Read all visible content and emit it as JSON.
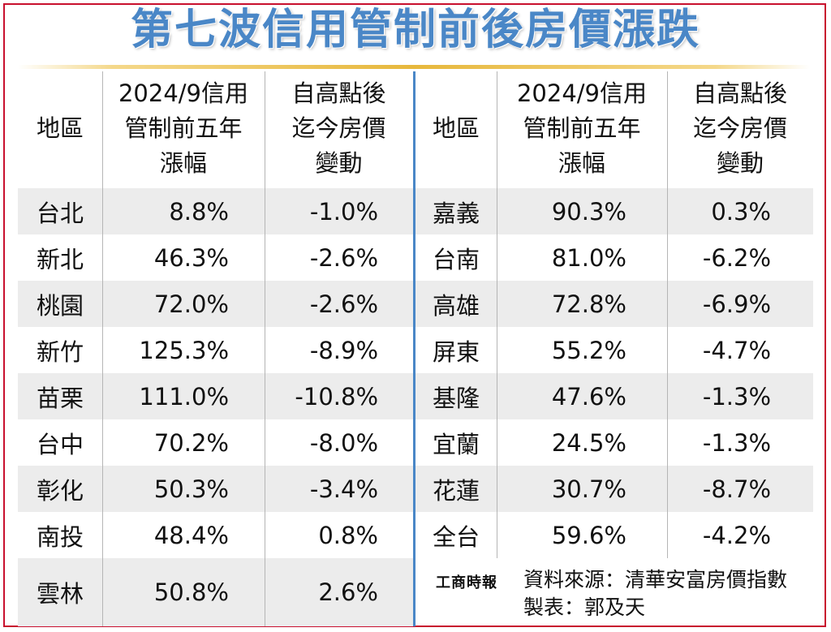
{
  "title": "第七波信用管制前後房價漲跌",
  "header": {
    "region": "地區",
    "col1_lines": [
      "2024/9信用",
      "管制前五年",
      "漲幅"
    ],
    "col2_lines": [
      "自高點後",
      "迄今房價",
      "變動"
    ]
  },
  "chart_data": {
    "type": "table",
    "columns": [
      "地區",
      "2024/9信用管制前五年漲幅",
      "自高點後迄今房價變動"
    ],
    "left": [
      {
        "region": "台北",
        "rise": "8.8%",
        "change": "-1.0%"
      },
      {
        "region": "新北",
        "rise": "46.3%",
        "change": "-2.6%"
      },
      {
        "region": "桃園",
        "rise": "72.0%",
        "change": "-2.6%"
      },
      {
        "region": "新竹",
        "rise": "125.3%",
        "change": "-8.9%"
      },
      {
        "region": "苗栗",
        "rise": "111.0%",
        "change": "-10.8%"
      },
      {
        "region": "台中",
        "rise": "70.2%",
        "change": "-8.0%"
      },
      {
        "region": "彰化",
        "rise": "50.3%",
        "change": "-3.4%"
      },
      {
        "region": "南投",
        "rise": "48.4%",
        "change": "0.8%"
      },
      {
        "region": "雲林",
        "rise": "50.8%",
        "change": "2.6%"
      }
    ],
    "right": [
      {
        "region": "嘉義",
        "rise": "90.3%",
        "change": "0.3%"
      },
      {
        "region": "台南",
        "rise": "81.0%",
        "change": "-6.2%"
      },
      {
        "region": "高雄",
        "rise": "72.8%",
        "change": "-6.9%"
      },
      {
        "region": "屏東",
        "rise": "55.2%",
        "change": "-4.7%"
      },
      {
        "region": "基隆",
        "rise": "47.6%",
        "change": "-1.3%"
      },
      {
        "region": "宜蘭",
        "rise": "24.5%",
        "change": "-1.3%"
      },
      {
        "region": "花蓮",
        "rise": "30.7%",
        "change": "-8.7%"
      },
      {
        "region": "全台",
        "rise": "59.6%",
        "change": "-4.2%"
      }
    ]
  },
  "footer": {
    "logo": "工商時報",
    "source": "資料來源：清華安富房價指數",
    "author": "製表：郭及天"
  },
  "colors": {
    "title": "#4a87c7",
    "divider": "#4a87c7",
    "border": "#c8102e",
    "stripe": "#ececec",
    "gold_rule": "#e7b83c"
  }
}
